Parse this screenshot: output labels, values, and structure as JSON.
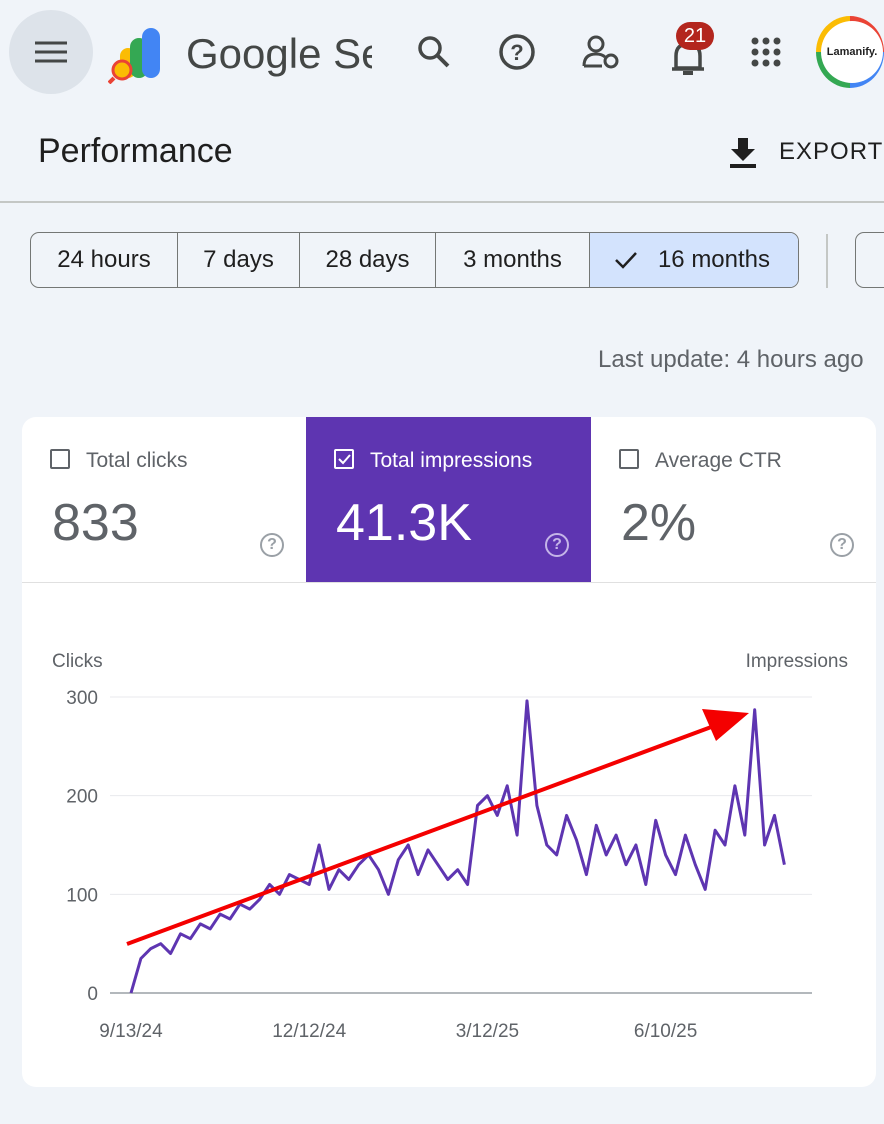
{
  "header": {
    "app_name": "Google Search Console",
    "notification_count": "21",
    "avatar_text": "Lamanify."
  },
  "page": {
    "title": "Performance",
    "export": "EXPORT",
    "last_update": "Last update: 4 hours ago"
  },
  "date_tabs": {
    "items": [
      "24 hours",
      "7 days",
      "28 days",
      "3 months",
      "16 months"
    ],
    "selected": 4
  },
  "metrics": [
    {
      "label": "Total clicks",
      "value": "833",
      "checked": false
    },
    {
      "label": "Total impressions",
      "value": "41.3K",
      "checked": true
    },
    {
      "label": "Average CTR",
      "value": "2%",
      "checked": false
    }
  ],
  "chart_data": {
    "type": "line",
    "y_label": "Clicks",
    "categories": [
      "9/13/24",
      null,
      null,
      null,
      null,
      null,
      null,
      null,
      null,
      null,
      null,
      null,
      null,
      null,
      null,
      null,
      null,
      null,
      "12/12/24",
      null,
      null,
      null,
      null,
      null,
      null,
      null,
      null,
      null,
      null,
      null,
      null,
      null,
      null,
      null,
      null,
      null,
      "3/12/25",
      null,
      null,
      null,
      null,
      null,
      null,
      null,
      null,
      null,
      null,
      null,
      null,
      null,
      null,
      null,
      null,
      null,
      "6/10/25",
      null,
      null,
      null,
      null,
      null,
      null,
      null,
      null,
      null,
      null,
      null,
      null
    ],
    "series": [
      {
        "name": "Impressions",
        "color": "#5e35b1",
        "values": [
          0,
          35,
          45,
          50,
          40,
          60,
          55,
          70,
          65,
          80,
          75,
          90,
          85,
          95,
          110,
          100,
          120,
          115,
          110,
          150,
          105,
          125,
          115,
          130,
          140,
          125,
          100,
          135,
          150,
          120,
          145,
          130,
          115,
          125,
          110,
          190,
          200,
          180,
          210,
          160,
          296,
          190,
          150,
          140,
          180,
          155,
          120,
          170,
          140,
          160,
          130,
          150,
          110,
          175,
          140,
          120,
          160,
          130,
          105,
          165,
          150,
          210,
          160,
          287,
          150,
          180,
          130
        ]
      }
    ],
    "ylim": [
      0,
      300
    ],
    "yticks": [
      0,
      100,
      200,
      300
    ],
    "grid": true
  }
}
